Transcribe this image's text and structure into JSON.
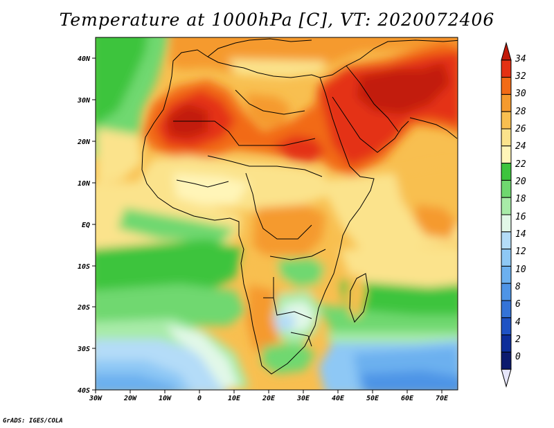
{
  "title": "Temperature at 1000hPa [C], VT: 2020072406",
  "credit": "GrADS: IGES/COLA",
  "map": {
    "lon_labels": [
      "30W",
      "20W",
      "10W",
      "0",
      "10E",
      "20E",
      "30E",
      "40E",
      "50E",
      "60E",
      "70E"
    ],
    "lat_labels": [
      "40N",
      "30N",
      "20N",
      "10N",
      "EQ",
      "10S",
      "20S",
      "30S",
      "40S"
    ]
  },
  "colorbar": {
    "labels": [
      "34",
      "32",
      "30",
      "28",
      "26",
      "24",
      "22",
      "20",
      "18",
      "16",
      "14",
      "12",
      "10",
      "8",
      "6",
      "4",
      "2",
      "0"
    ],
    "colors": [
      "#c21a0a",
      "#e43113",
      "#f26b16",
      "#f59a2e",
      "#f8bf50",
      "#fbe38c",
      "#fff5b8",
      "#3dc43d",
      "#6fd86f",
      "#a8eba8",
      "#e2f8e8",
      "#b4dcf8",
      "#8ec8f5",
      "#6cb0ef",
      "#4e94e6",
      "#3473d8",
      "#1e52c4",
      "#0d2e9a",
      "#0b1a6e",
      "#e6e6fa"
    ]
  }
}
